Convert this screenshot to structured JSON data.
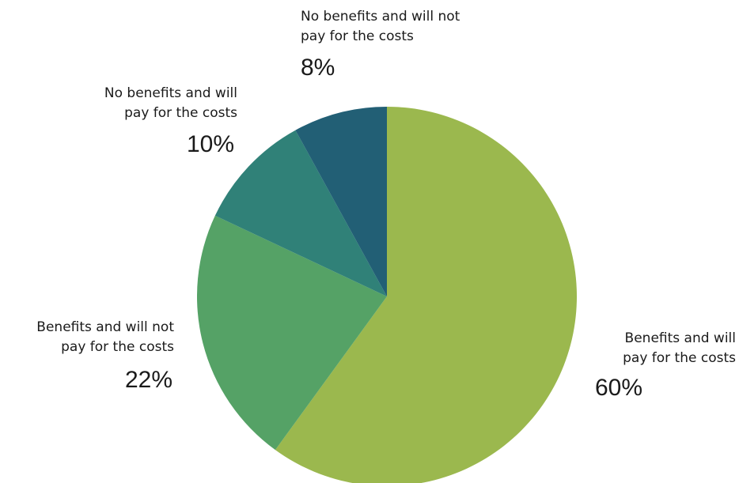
{
  "chart_data": {
    "type": "pie",
    "title": "",
    "start_angle_deg": 0,
    "direction": "clockwise",
    "slices": [
      {
        "label_lines": [
          "Benefits and will",
          "pay for the costs"
        ],
        "value": 60,
        "value_label": "60%",
        "color": "#9bb84e"
      },
      {
        "label_lines": [
          "Benefits and will not",
          "pay for the costs"
        ],
        "value": 22,
        "value_label": "22%",
        "color": "#55a266"
      },
      {
        "label_lines": [
          "No benefits and will",
          "pay for the costs"
        ],
        "value": 10,
        "value_label": "10%",
        "color": "#308178"
      },
      {
        "label_lines": [
          "No benefits and will not",
          "pay for the costs"
        ],
        "value": 8,
        "value_label": "8%",
        "color": "#225f75"
      }
    ]
  }
}
